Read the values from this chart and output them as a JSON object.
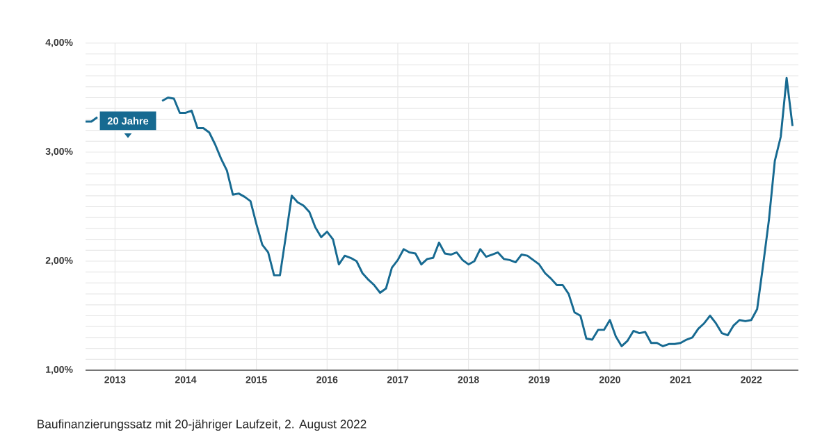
{
  "chart_data": {
    "type": "line",
    "x": [
      "2012-08",
      "2012-09",
      "2012-10",
      "2012-11",
      "2012-12",
      "2013-01",
      "2013-02",
      "2013-03",
      "2013-04",
      "2013-05",
      "2013-06",
      "2013-07",
      "2013-08",
      "2013-09",
      "2013-10",
      "2013-11",
      "2013-12",
      "2014-01",
      "2014-02",
      "2014-03",
      "2014-04",
      "2014-05",
      "2014-06",
      "2014-07",
      "2014-08",
      "2014-09",
      "2014-10",
      "2014-11",
      "2014-12",
      "2015-01",
      "2015-02",
      "2015-03",
      "2015-04",
      "2015-05",
      "2015-06",
      "2015-07",
      "2015-08",
      "2015-09",
      "2015-10",
      "2015-11",
      "2015-12",
      "2016-01",
      "2016-02",
      "2016-03",
      "2016-04",
      "2016-05",
      "2016-06",
      "2016-07",
      "2016-08",
      "2016-09",
      "2016-10",
      "2016-11",
      "2016-12",
      "2017-01",
      "2017-02",
      "2017-03",
      "2017-04",
      "2017-05",
      "2017-06",
      "2017-07",
      "2017-08",
      "2017-09",
      "2017-10",
      "2017-11",
      "2017-12",
      "2018-01",
      "2018-02",
      "2018-03",
      "2018-04",
      "2018-05",
      "2018-06",
      "2018-07",
      "2018-08",
      "2018-09",
      "2018-10",
      "2018-11",
      "2018-12",
      "2019-01",
      "2019-02",
      "2019-03",
      "2019-04",
      "2019-05",
      "2019-06",
      "2019-07",
      "2019-08",
      "2019-09",
      "2019-10",
      "2019-11",
      "2019-12",
      "2020-01",
      "2020-02",
      "2020-03",
      "2020-04",
      "2020-05",
      "2020-06",
      "2020-07",
      "2020-08",
      "2020-09",
      "2020-10",
      "2020-11",
      "2020-12",
      "2021-01",
      "2021-02",
      "2021-03",
      "2021-04",
      "2021-05",
      "2021-06",
      "2021-07",
      "2021-08",
      "2021-09",
      "2021-10",
      "2021-11",
      "2021-12",
      "2022-01",
      "2022-02",
      "2022-03",
      "2022-04",
      "2022-05",
      "2022-06",
      "2022-07",
      "2022-08"
    ],
    "series": [
      {
        "name": "20 Jahre",
        "color": "#176a91",
        "values": [
          3.28,
          3.28,
          3.32,
          null,
          null,
          null,
          null,
          null,
          null,
          null,
          null,
          null,
          null,
          3.47,
          3.5,
          3.49,
          3.36,
          3.36,
          3.38,
          3.22,
          3.22,
          3.18,
          3.07,
          2.94,
          2.83,
          2.61,
          2.62,
          2.59,
          2.55,
          2.34,
          2.15,
          2.08,
          1.87,
          1.87,
          2.23,
          2.6,
          2.54,
          2.51,
          2.45,
          2.31,
          2.22,
          2.27,
          2.2,
          1.97,
          2.05,
          2.03,
          2.0,
          1.89,
          1.83,
          1.78,
          1.71,
          1.75,
          1.94,
          2.01,
          2.11,
          2.08,
          2.07,
          1.97,
          2.02,
          2.03,
          2.17,
          2.07,
          2.06,
          2.08,
          2.01,
          1.97,
          2.0,
          2.11,
          2.04,
          2.06,
          2.08,
          2.02,
          2.01,
          1.99,
          2.06,
          2.05,
          2.01,
          1.97,
          1.89,
          1.84,
          1.78,
          1.78,
          1.7,
          1.53,
          1.5,
          1.29,
          1.28,
          1.37,
          1.37,
          1.46,
          1.31,
          1.22,
          1.27,
          1.36,
          1.34,
          1.35,
          1.25,
          1.25,
          1.22,
          1.24,
          1.24,
          1.25,
          1.28,
          1.3,
          1.38,
          1.43,
          1.5,
          1.43,
          1.34,
          1.32,
          1.41,
          1.46,
          1.45,
          1.46,
          1.56,
          1.96,
          2.38,
          2.92,
          3.14,
          3.68,
          3.24
        ]
      }
    ],
    "xlim": [
      "2012-08",
      "2022-09"
    ],
    "xticks": [
      {
        "value": "2013",
        "label": "2013"
      },
      {
        "value": "2014",
        "label": "2014"
      },
      {
        "value": "2015",
        "label": "2015"
      },
      {
        "value": "2016",
        "label": "2016"
      },
      {
        "value": "2017",
        "label": "2017"
      },
      {
        "value": "2018",
        "label": "2018"
      },
      {
        "value": "2019",
        "label": "2019"
      },
      {
        "value": "2020",
        "label": "2020"
      },
      {
        "value": "2021",
        "label": "2021"
      },
      {
        "value": "2022",
        "label": "2022"
      }
    ],
    "ylim": [
      1,
      4
    ],
    "yticks": [
      {
        "value": 1,
        "label": "1,00%"
      },
      {
        "value": 1.1,
        "label": null
      },
      {
        "value": 1.2,
        "label": null
      },
      {
        "value": 1.3,
        "label": null
      },
      {
        "value": 1.4,
        "label": null
      },
      {
        "value": 1.5,
        "label": null
      },
      {
        "value": 1.6,
        "label": null
      },
      {
        "value": 1.7,
        "label": null
      },
      {
        "value": 1.8,
        "label": null
      },
      {
        "value": 1.9,
        "label": null
      },
      {
        "value": 2,
        "label": "2,00%"
      },
      {
        "value": 2.1,
        "label": null
      },
      {
        "value": 2.2,
        "label": null
      },
      {
        "value": 2.3,
        "label": null
      },
      {
        "value": 2.4,
        "label": null
      },
      {
        "value": 2.5,
        "label": null
      },
      {
        "value": 2.6,
        "label": null
      },
      {
        "value": 2.7,
        "label": null
      },
      {
        "value": 2.8,
        "label": null
      },
      {
        "value": 2.9,
        "label": null
      },
      {
        "value": 3,
        "label": "3,00%"
      },
      {
        "value": 3.1,
        "label": null
      },
      {
        "value": 3.2,
        "label": null
      },
      {
        "value": 3.3,
        "label": null
      },
      {
        "value": 3.4,
        "label": null
      },
      {
        "value": 3.5,
        "label": null
      },
      {
        "value": 3.6,
        "label": null
      },
      {
        "value": 3.7,
        "label": null
      },
      {
        "value": 3.8,
        "label": null
      },
      {
        "value": 3.9,
        "label": null
      },
      {
        "value": 4,
        "label": "4,00%"
      }
    ],
    "grid": true,
    "legend": false,
    "marker": "none",
    "line_style": "solid",
    "annotations": [
      "Baufinanzierungssatz mit 20-jähriger Laufzeit, 2. August 2022"
    ]
  }
}
